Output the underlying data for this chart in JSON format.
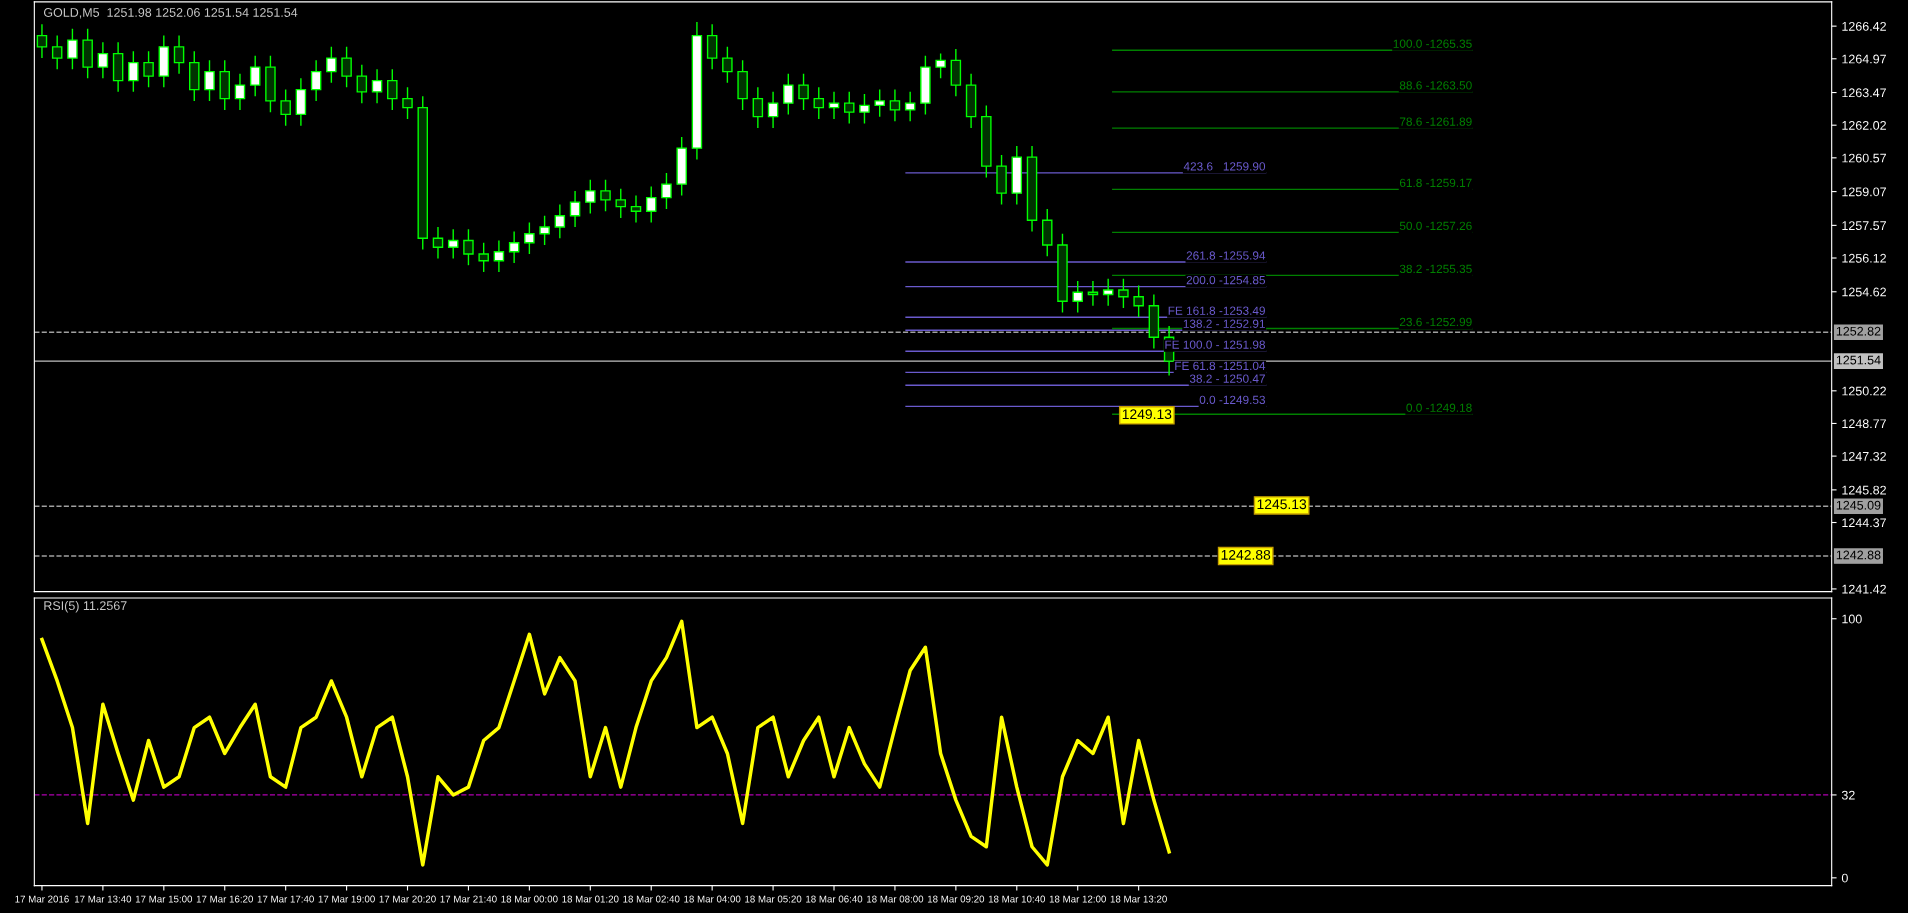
{
  "chart_data": [
    {
      "type": "candlestick",
      "title": "GOLD,M5  1251.98 1252.06 1251.54 1251.54",
      "categories": [
        null,
        null,
        null,
        null,
        null,
        null,
        null,
        null,
        null,
        null,
        null,
        null,
        null,
        null,
        null,
        null,
        null,
        null,
        null,
        null,
        null,
        null,
        null,
        null,
        null,
        null,
        null,
        null,
        null,
        null,
        null,
        null,
        null,
        null,
        null,
        null,
        null,
        null,
        null,
        null,
        null,
        null,
        null,
        null,
        null,
        null,
        null,
        null,
        null,
        null,
        null,
        null,
        null,
        null,
        null,
        null,
        null,
        null,
        null,
        null,
        null,
        null,
        null,
        null,
        null,
        null,
        null,
        null,
        null,
        null,
        null,
        null,
        null,
        null,
        null,
        null,
        null,
        null,
        null,
        null,
        null,
        null,
        null,
        null,
        null,
        null,
        null,
        null,
        null,
        null,
        null,
        null,
        null,
        null,
        null,
        null,
        null,
        null,
        null,
        null,
        null,
        null,
        null,
        null,
        null,
        null,
        null,
        null,
        null,
        null,
        null,
        null,
        null,
        null,
        null,
        null,
        null,
        null
      ],
      "color": "#00ff00",
      "ohlc": [
        [
          1266.0,
          1266.5,
          1265.0,
          1265.5
        ],
        [
          1265.5,
          1266.0,
          1264.5,
          1265.0
        ],
        [
          1265.0,
          1266.3,
          1264.5,
          1265.8
        ],
        [
          1265.8,
          1266.3,
          1264.1,
          1264.6
        ],
        [
          1264.6,
          1265.7,
          1264.1,
          1265.2
        ],
        [
          1265.2,
          1265.7,
          1263.5,
          1264.0
        ],
        [
          1264.0,
          1265.3,
          1263.5,
          1264.8
        ],
        [
          1264.8,
          1265.3,
          1263.7,
          1264.2
        ],
        [
          1264.2,
          1266.0,
          1263.7,
          1265.5
        ],
        [
          1265.5,
          1266.0,
          1264.3,
          1264.8
        ],
        [
          1264.8,
          1265.3,
          1263.1,
          1263.6
        ],
        [
          1263.6,
          1264.9,
          1263.1,
          1264.4
        ],
        [
          1264.4,
          1264.9,
          1262.7,
          1263.2
        ],
        [
          1263.2,
          1264.3,
          1262.7,
          1263.8
        ],
        [
          1263.8,
          1265.1,
          1263.3,
          1264.6
        ],
        [
          1264.6,
          1265.1,
          1262.6,
          1263.1
        ],
        [
          1263.1,
          1263.6,
          1262.0,
          1262.5
        ],
        [
          1262.5,
          1264.1,
          1262.0,
          1263.6
        ],
        [
          1263.6,
          1264.9,
          1263.1,
          1264.4
        ],
        [
          1264.4,
          1265.5,
          1263.9,
          1265.0
        ],
        [
          1265.0,
          1265.5,
          1263.7,
          1264.2
        ],
        [
          1264.2,
          1264.7,
          1263.0,
          1263.5
        ],
        [
          1263.5,
          1264.5,
          1263.0,
          1264.0
        ],
        [
          1264.0,
          1264.5,
          1262.7,
          1263.2
        ],
        [
          1263.2,
          1263.7,
          1262.3,
          1262.8
        ],
        [
          1262.8,
          1263.3,
          1256.5,
          1257.0
        ],
        [
          1257.0,
          1257.5,
          1256.1,
          1256.6
        ],
        [
          1256.6,
          1257.4,
          1256.1,
          1256.9
        ],
        [
          1256.9,
          1257.4,
          1255.8,
          1256.3
        ],
        [
          1256.3,
          1256.8,
          1255.5,
          1256.0
        ],
        [
          1256.0,
          1256.9,
          1255.5,
          1256.4
        ],
        [
          1256.4,
          1257.3,
          1255.9,
          1256.8
        ],
        [
          1256.8,
          1257.7,
          1256.3,
          1257.2
        ],
        [
          1257.2,
          1258.0,
          1256.7,
          1257.5
        ],
        [
          1257.5,
          1258.5,
          1257.0,
          1258.0
        ],
        [
          1258.0,
          1259.1,
          1257.5,
          1258.6
        ],
        [
          1258.6,
          1259.6,
          1258.1,
          1259.1
        ],
        [
          1259.1,
          1259.6,
          1258.2,
          1258.7
        ],
        [
          1258.7,
          1259.2,
          1257.9,
          1258.4
        ],
        [
          1258.4,
          1258.9,
          1257.7,
          1258.2
        ],
        [
          1258.2,
          1259.3,
          1257.7,
          1258.8
        ],
        [
          1258.8,
          1259.9,
          1258.3,
          1259.4
        ],
        [
          1259.4,
          1261.5,
          1258.9,
          1261.0
        ],
        [
          1261.0,
          1266.6,
          1260.5,
          1266.0
        ],
        [
          1266.0,
          1266.5,
          1264.5,
          1265.0
        ],
        [
          1265.0,
          1265.5,
          1263.9,
          1264.4
        ],
        [
          1264.4,
          1264.9,
          1262.7,
          1263.2
        ],
        [
          1263.2,
          1263.7,
          1261.9,
          1262.4
        ],
        [
          1262.4,
          1263.5,
          1261.9,
          1263.0
        ],
        [
          1263.0,
          1264.3,
          1262.5,
          1263.8
        ],
        [
          1263.8,
          1264.3,
          1262.7,
          1263.2
        ],
        [
          1263.2,
          1263.7,
          1262.3,
          1262.8
        ],
        [
          1262.8,
          1263.5,
          1262.3,
          1263.0
        ],
        [
          1263.0,
          1263.5,
          1262.1,
          1262.6
        ],
        [
          1262.6,
          1263.4,
          1262.1,
          1262.9
        ],
        [
          1262.9,
          1263.6,
          1262.4,
          1263.1
        ],
        [
          1263.1,
          1263.6,
          1262.2,
          1262.7
        ],
        [
          1262.7,
          1263.5,
          1262.2,
          1263.0
        ],
        [
          1263.0,
          1265.1,
          1262.5,
          1264.6
        ],
        [
          1264.6,
          1265.2,
          1264.1,
          1264.9
        ],
        [
          1264.9,
          1265.4,
          1263.3,
          1263.8
        ],
        [
          1263.8,
          1264.3,
          1261.9,
          1262.4
        ],
        [
          1262.4,
          1262.9,
          1259.7,
          1260.2
        ],
        [
          1260.2,
          1260.7,
          1258.5,
          1259.0
        ],
        [
          1259.0,
          1261.1,
          1258.5,
          1260.6
        ],
        [
          1260.6,
          1261.1,
          1257.3,
          1257.8
        ],
        [
          1257.8,
          1258.3,
          1256.2,
          1256.7
        ],
        [
          1256.7,
          1257.2,
          1253.7,
          1254.2
        ],
        [
          1254.2,
          1255.1,
          1253.7,
          1254.6
        ],
        [
          1254.6,
          1255.1,
          1254.0,
          1254.5
        ],
        [
          1254.5,
          1255.2,
          1254.0,
          1254.7
        ],
        [
          1254.7,
          1255.2,
          1253.9,
          1254.4
        ],
        [
          1254.4,
          1254.9,
          1253.5,
          1254.0
        ],
        [
          1254.0,
          1254.5,
          1252.1,
          1252.6
        ],
        [
          1252.6,
          1253.1,
          1250.9,
          1251.54
        ],
        null,
        null,
        null,
        null,
        null,
        null,
        null,
        null,
        null,
        null,
        null,
        null,
        null,
        null,
        null,
        null,
        null,
        null,
        null,
        null,
        null,
        null,
        null,
        null,
        null,
        null,
        null,
        null,
        null,
        null,
        null,
        null,
        null,
        null,
        null,
        null,
        null,
        null,
        null,
        null,
        null,
        null,
        null
      ],
      "ylim": [
        1241.3,
        1267.5
      ],
      "yticks": [
        1266.42,
        1264.97,
        1263.47,
        1262.02,
        1260.57,
        1259.07,
        1257.57,
        1256.12,
        1254.62,
        1250.22,
        1248.77,
        1247.32,
        1245.82,
        1244.37,
        1241.42
      ],
      "tick_labels": "y",
      "ref_lines": [
        {
          "axis": "y",
          "value": 1265.35,
          "color": "#008000"
        },
        {
          "axis": "y",
          "value": 1263.5,
          "color": "#008000"
        },
        {
          "axis": "y",
          "value": 1261.89,
          "color": "#008000"
        },
        {
          "axis": "y",
          "value": 1259.17,
          "color": "#008000"
        },
        {
          "axis": "y",
          "value": 1257.26,
          "color": "#008000"
        },
        {
          "axis": "y",
          "value": 1255.35,
          "color": "#008000"
        },
        {
          "axis": "y",
          "value": 1252.99,
          "color": "#008000"
        },
        {
          "axis": "y",
          "value": 1249.18,
          "color": "#008000"
        },
        {
          "axis": "y",
          "value": 1259.9,
          "color": "#6a5acd"
        },
        {
          "axis": "y",
          "value": 1255.94,
          "color": "#6a5acd"
        },
        {
          "axis": "y",
          "value": 1254.85,
          "color": "#6a5acd"
        },
        {
          "axis": "y",
          "value": 1253.49,
          "color": "#6a5acd"
        },
        {
          "axis": "y",
          "value": 1252.91,
          "color": "#6a5acd"
        },
        {
          "axis": "y",
          "value": 1251.98,
          "color": "#6a5acd"
        },
        {
          "axis": "y",
          "value": 1251.04,
          "color": "#6a5acd"
        },
        {
          "axis": "y",
          "value": 1250.47,
          "color": "#6a5acd"
        },
        {
          "axis": "y",
          "value": 1249.53,
          "color": "#6a5acd"
        },
        {
          "axis": "y",
          "value": 1252.82,
          "label": "1252.82",
          "color": "#a0a0a0",
          "line_style": "dashed"
        },
        {
          "axis": "y",
          "value": 1251.54,
          "label": "1251.54",
          "color": "#c0c0c0",
          "line_style": "solid"
        },
        {
          "axis": "y",
          "value": 1245.09,
          "label": "1245.09",
          "color": "#a0a0a0",
          "line_style": "dashed"
        },
        {
          "axis": "y",
          "value": 1242.88,
          "label": "1242.88",
          "color": "#a0a0a0",
          "line_style": "dashed"
        }
      ],
      "annotations": [
        {
          "text": "100.0 -1265.35",
          "y": 1265.35
        },
        {
          "text": "88.6 -1263.50",
          "y": 1263.5
        },
        {
          "text": "78.6 -1261.89",
          "y": 1261.89
        },
        {
          "text": "61.8 -1259.17",
          "y": 1259.17
        },
        {
          "text": "50.0 -1257.26",
          "y": 1257.26
        },
        {
          "text": "38.2 -1255.35",
          "y": 1255.35
        },
        {
          "text": "23.6 -1252.99",
          "y": 1252.99
        },
        {
          "text": "0.0 -1249.18",
          "y": 1249.18
        },
        {
          "text": "423.6   1259.90",
          "y": 1259.9
        },
        {
          "text": "261.8 -1255.94",
          "y": 1255.94
        },
        {
          "text": "200.0 -1254.85",
          "y": 1254.85
        },
        {
          "text": "FE 161.8 -1253.49",
          "y": 1253.49
        },
        {
          "text": "138.2 - 1252.91",
          "y": 1252.91
        },
        {
          "text": "FE 100.0 - 1251.98",
          "y": 1251.98
        },
        {
          "text": "FE 61.8 -1251.04",
          "y": 1251.04
        },
        {
          "text": "38.2 - 1250.47",
          "y": 1250.47
        },
        {
          "text": "0.0 -1249.53",
          "y": 1249.53
        },
        {
          "text": "1249.13",
          "y": 1249.13
        },
        {
          "text": "1245.13",
          "y": 1245.13
        },
        {
          "text": "1242.88",
          "y": 1242.88
        }
      ]
    },
    {
      "type": "line",
      "title": "RSI(5) 11.2567",
      "categories": [
        "17 Mar 2016",
        null,
        null,
        null,
        "17 Mar 13:40",
        null,
        null,
        null,
        "17 Mar 15:00",
        null,
        null,
        null,
        "17 Mar 16:20",
        null,
        null,
        null,
        "17 Mar 17:40",
        null,
        null,
        null,
        "17 Mar 19:00",
        null,
        null,
        null,
        "17 Mar 20:20",
        null,
        null,
        null,
        "17 Mar 21:40",
        null,
        null,
        null,
        "18 Mar 00:00",
        null,
        null,
        null,
        "18 Mar 01:20",
        null,
        null,
        null,
        "18 Mar 02:40",
        null,
        null,
        null,
        "18 Mar 04:00",
        null,
        null,
        null,
        "18 Mar 05:20",
        null,
        null,
        null,
        "18 Mar 06:40",
        null,
        null,
        null,
        "18 Mar 08:00",
        null,
        null,
        null,
        "18 Mar 09:20",
        null,
        null,
        null,
        "18 Mar 10:40",
        null,
        null,
        null,
        "18 Mar 12:00",
        null,
        null,
        null,
        "18 Mar 13:20",
        null,
        null,
        null,
        null,
        null,
        null,
        null,
        null,
        null,
        null,
        null,
        null,
        null,
        null,
        null,
        null,
        null,
        null,
        null,
        null,
        null,
        null,
        null,
        null,
        null,
        null,
        null,
        null,
        null,
        null,
        null,
        null,
        null,
        null,
        null,
        null,
        null,
        null,
        null,
        null,
        null,
        null,
        null,
        null,
        null
      ],
      "series": [
        {
          "color": "#ffff00",
          "values": [
            92,
            76,
            58,
            21,
            67,
            48,
            30,
            53,
            35,
            39,
            58,
            62,
            48,
            58,
            67,
            39,
            35,
            58,
            62,
            76,
            62,
            39,
            58,
            62,
            39,
            5,
            39,
            32,
            35,
            53,
            58,
            76,
            94,
            71,
            85,
            76,
            39,
            58,
            35,
            58,
            76,
            85,
            99,
            58,
            62,
            48,
            21,
            58,
            62,
            39,
            53,
            62,
            39,
            58,
            44,
            35,
            58,
            80,
            89,
            48,
            30,
            16,
            12,
            62,
            35,
            12,
            5,
            39,
            53,
            48,
            62,
            21,
            53,
            30,
            10,
            null,
            null,
            null,
            null,
            null,
            null,
            null,
            null,
            null,
            null,
            null,
            null,
            null,
            null,
            null,
            null,
            null,
            null,
            null,
            null,
            null,
            null,
            null,
            null,
            null,
            null,
            null,
            null,
            null,
            null,
            null,
            null,
            null,
            null,
            null,
            null,
            null,
            null,
            null,
            null,
            null,
            null,
            null
          ]
        }
      ],
      "ylim": [
        -3,
        108
      ],
      "yticks": [
        0,
        32,
        100
      ],
      "ref_lines": [
        {
          "axis": "y",
          "value": 32,
          "color": "#b000b0",
          "line_style": "dashed"
        }
      ]
    }
  ]
}
